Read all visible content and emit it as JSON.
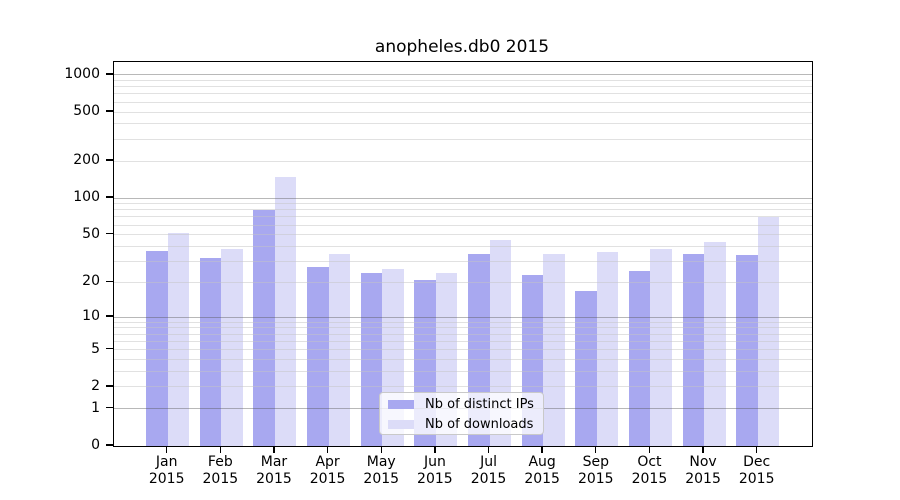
{
  "title": "anopheles.db0 2015",
  "colors": {
    "ips": "#a8a8f0",
    "downloads": "#dcdcf8",
    "axis": "#000000",
    "grid_major": "#b4b4b4",
    "grid_minor": "#e6e6e6"
  },
  "legend": {
    "items": [
      {
        "label": "Nb of distinct IPs",
        "series": "ips"
      },
      {
        "label": "Nb of downloads",
        "series": "downloads"
      }
    ]
  },
  "y_axis": {
    "tick_labels": [
      "0",
      "1",
      "2",
      "5",
      "10",
      "20",
      "50",
      "100",
      "200",
      "500",
      "1000"
    ],
    "tick_values": [
      0,
      1,
      2,
      5,
      10,
      20,
      50,
      100,
      200,
      500,
      1000
    ]
  },
  "x_axis": {
    "months": [
      "Jan",
      "Feb",
      "Mar",
      "Apr",
      "May",
      "Jun",
      "Jul",
      "Aug",
      "Sep",
      "Oct",
      "Nov",
      "Dec"
    ],
    "year": "2015"
  },
  "chart_data": {
    "type": "bar",
    "title": "anopheles.db0 2015",
    "categories": [
      "Jan 2015",
      "Feb 2015",
      "Mar 2015",
      "Apr 2015",
      "May 2015",
      "Jun 2015",
      "Jul 2015",
      "Aug 2015",
      "Sep 2015",
      "Oct 2015",
      "Nov 2015",
      "Dec 2015"
    ],
    "series": [
      {
        "name": "Nb of distinct IPs",
        "values": [
          37,
          32,
          80,
          27,
          24,
          21,
          35,
          23,
          17,
          25,
          35,
          34
        ]
      },
      {
        "name": "Nb of downloads",
        "values": [
          52,
          38,
          148,
          35,
          26,
          24,
          45,
          35,
          36,
          38,
          44,
          70
        ]
      }
    ],
    "xlabel": "",
    "ylabel": "",
    "yscale": "log10(1+y)",
    "y_ticks": [
      0,
      1,
      2,
      5,
      10,
      20,
      50,
      100,
      200,
      500,
      1000
    ],
    "ylim": [
      0,
      1270
    ],
    "grid": "horizontal",
    "legend_position": "inside-bottom-center"
  }
}
